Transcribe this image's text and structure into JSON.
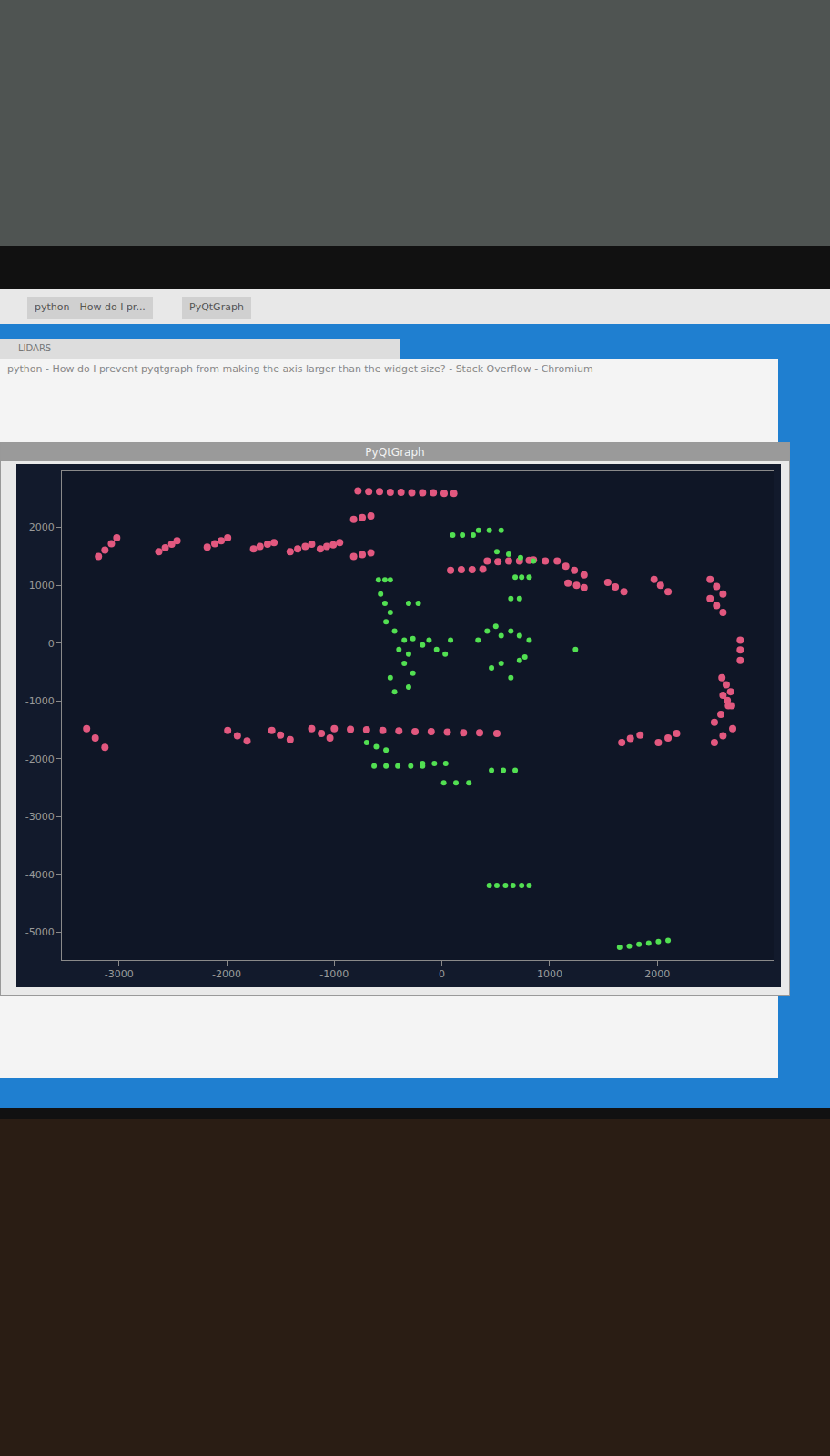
{
  "screen": {
    "tabs": [
      "python - How do I pr...",
      "PyQtGraph"
    ],
    "small_window_title": "LIDARS",
    "browser_title": "python - How do I prevent pyqtgraph from making the axis larger than the widget size? - Stack Overflow - Chromium",
    "window_title": "PyQtGraph"
  },
  "chart_data": {
    "type": "scatter",
    "xlim": [
      -3530,
      3080
    ],
    "ylim": [
      -5480,
      2970
    ],
    "xticks": [
      -3000,
      -2000,
      -1000,
      0,
      1000,
      2000
    ],
    "yticks": [
      -5000,
      -4000,
      -3000,
      -2000,
      -1000,
      0,
      1000,
      2000
    ],
    "grid": false,
    "series": [
      {
        "color": "#e2587f",
        "marker": "circle",
        "x": [
          -780,
          -680,
          -580,
          -480,
          -380,
          -280,
          -180,
          -80,
          20,
          110,
          -820,
          -740,
          -660,
          -820,
          -740,
          -660,
          -3190,
          -3130,
          -3070,
          -3020,
          -2630,
          -2570,
          -2510,
          -2460,
          -2180,
          -2110,
          -2050,
          -1990,
          -1750,
          -1690,
          -1620,
          -1560,
          -1410,
          -1340,
          -1270,
          -1210,
          -1130,
          -1070,
          -1010,
          -950,
          80,
          180,
          280,
          380,
          420,
          520,
          620,
          720,
          810,
          850,
          960,
          1070,
          1150,
          1230,
          1320,
          1170,
          1250,
          1320,
          1540,
          1610,
          1690,
          1970,
          2030,
          2100,
          2490,
          2550,
          2610,
          2490,
          2550,
          2610,
          2770,
          2770,
          2770,
          2600,
          2640,
          2680,
          2610,
          2650,
          2690,
          2530,
          2590,
          2660,
          2530,
          2610,
          2700,
          1670,
          1750,
          1840,
          2010,
          2100,
          2180,
          -1000,
          -850,
          -700,
          -550,
          -400,
          -250,
          -100,
          50,
          200,
          350,
          510,
          -1210,
          -1120,
          -1040,
          -1580,
          -1500,
          -1410,
          -1990,
          -1900,
          -1810,
          -3300,
          -3220,
          -3130
        ],
        "values": [
          2630,
          2620,
          2620,
          2610,
          2610,
          2600,
          2600,
          2600,
          2590,
          2590,
          2140,
          2170,
          2200,
          1500,
          1530,
          1560,
          1500,
          1610,
          1720,
          1820,
          1580,
          1650,
          1710,
          1770,
          1660,
          1720,
          1770,
          1820,
          1630,
          1670,
          1710,
          1740,
          1580,
          1630,
          1670,
          1710,
          1630,
          1670,
          1700,
          1740,
          1260,
          1270,
          1270,
          1280,
          1420,
          1410,
          1420,
          1420,
          1430,
          1440,
          1420,
          1420,
          1330,
          1260,
          1180,
          1040,
          1000,
          960,
          1050,
          970,
          890,
          1100,
          1000,
          890,
          1100,
          980,
          850,
          770,
          650,
          530,
          50,
          -120,
          -300,
          -600,
          -720,
          -840,
          -900,
          -990,
          -1080,
          -1370,
          -1230,
          -1080,
          -1720,
          -1600,
          -1480,
          -1720,
          -1650,
          -1590,
          -1720,
          -1640,
          -1560,
          -1480,
          -1490,
          -1500,
          -1510,
          -1520,
          -1530,
          -1530,
          -1540,
          -1550,
          -1550,
          -1560,
          -1480,
          -1560,
          -1640,
          -1510,
          -1590,
          -1670,
          -1510,
          -1600,
          -1690,
          -1480,
          -1640,
          -1800
        ]
      },
      {
        "color": "#52e052",
        "marker": "circle",
        "x": [
          100,
          190,
          290,
          340,
          440,
          550,
          510,
          620,
          730,
          850,
          -590,
          -530,
          -480,
          680,
          740,
          810,
          -570,
          -530,
          -480,
          -520,
          -440,
          -310,
          -220,
          640,
          720,
          -400,
          -350,
          -270,
          -310,
          -180,
          -120,
          -50,
          30,
          80,
          335,
          420,
          500,
          550,
          640,
          720,
          810,
          1240,
          460,
          550,
          640,
          720,
          770,
          -480,
          -440,
          -310,
          -270,
          -350,
          -700,
          -610,
          -520,
          -630,
          -520,
          -410,
          -290,
          -180,
          -180,
          -70,
          35,
          17,
          130,
          250,
          460,
          570,
          680,
          440,
          510,
          590,
          660,
          740,
          810,
          1650,
          1740,
          1830,
          1920,
          2010,
          2100
        ],
        "values": [
          1870,
          1870,
          1870,
          1950,
          1950,
          1950,
          1580,
          1540,
          1480,
          1420,
          1095,
          1095,
          1095,
          1140,
          1140,
          1140,
          850,
          690,
          530,
          370,
          210,
          690,
          690,
          770,
          770,
          -110,
          50,
          80,
          -190,
          -30,
          50,
          -110,
          -190,
          50,
          50,
          210,
          290,
          130,
          210,
          130,
          50,
          -110,
          -430,
          -350,
          -600,
          -300,
          -240,
          -600,
          -840,
          -760,
          -520,
          -350,
          -1720,
          -1790,
          -1850,
          -2125,
          -2125,
          -2125,
          -2125,
          -2125,
          -2080,
          -2080,
          -2080,
          -2415,
          -2415,
          -2415,
          -2200,
          -2200,
          -2200,
          -4190,
          -4190,
          -4190,
          -4190,
          -4190,
          -4190,
          -5260,
          -5240,
          -5210,
          -5190,
          -5160,
          -5140
        ]
      }
    ]
  }
}
